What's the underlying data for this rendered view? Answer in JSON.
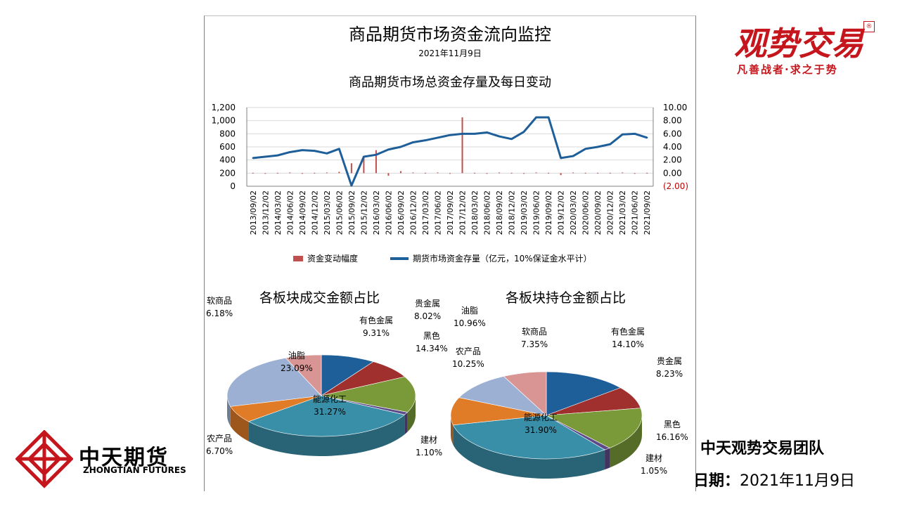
{
  "header": {
    "title": "商品期货市场资金流向监控",
    "date": "2021年11月9日",
    "chart_title": "商品期货市场总资金存量及每日变动"
  },
  "brand": {
    "logo_text": "观势交易",
    "slogan": "凡善战者·求之于势",
    "company_cn": "中天期货",
    "company_en": "ZHONGTIAN FUTURES",
    "team": "中天观势交易团队",
    "footer_date_label": "日期：",
    "footer_date": "2021年11月9日",
    "colors": {
      "brand_red": "#c4161c"
    }
  },
  "chart_data": [
    {
      "type": "line",
      "title": "商品期货市场总资金存量及每日变动",
      "x": [
        "2013/09/02",
        "2013/12/02",
        "2014/03/02",
        "2014/06/02",
        "2014/09/02",
        "2014/12/02",
        "2015/03/02",
        "2015/06/02",
        "2015/09/02",
        "2015/12/02",
        "2016/03/02",
        "2016/06/02",
        "2016/09/02",
        "2016/12/02",
        "2017/03/02",
        "2017/06/02",
        "2017/09/02",
        "2017/12/02",
        "2018/03/02",
        "2018/06/02",
        "2018/09/02",
        "2018/12/02",
        "2019/03/02",
        "2019/06/02",
        "2019/09/02",
        "2019/12/02",
        "2020/03/02",
        "2020/06/02",
        "2020/09/02",
        "2020/12/02",
        "2021/03/02",
        "2021/06/02",
        "2021/09/02"
      ],
      "left_axis": {
        "ylim": [
          0,
          1200
        ],
        "ticks": [
          "0",
          "200",
          "400",
          "600",
          "800",
          "1,000",
          "1,200"
        ]
      },
      "right_axis": {
        "ylim": [
          -2,
          10
        ],
        "ticks": [
          "(2.00)",
          "0.00",
          "2.00",
          "4.00",
          "6.00",
          "8.00",
          "10.00"
        ]
      },
      "series": [
        {
          "name": "期货市场资金存量（亿元，10%保证金水平计）",
          "axis": "left",
          "color": "#1f5f99",
          "values": [
            430,
            450,
            470,
            520,
            550,
            540,
            500,
            570,
            10,
            450,
            480,
            560,
            600,
            670,
            700,
            740,
            780,
            800,
            800,
            820,
            760,
            720,
            830,
            1050,
            1050,
            430,
            460,
            570,
            600,
            640,
            790,
            800,
            740
          ]
        },
        {
          "name": "资金变动幅度",
          "axis": "right",
          "color": "#c0504d",
          "values": [
            0.05,
            -0.05,
            0.05,
            0.1,
            -0.05,
            0.05,
            0.1,
            0.2,
            1.5,
            2.5,
            3.5,
            -0.4,
            0.3,
            0.1,
            0.05,
            0.1,
            -0.1,
            8.5,
            0.05,
            -0.05,
            0.1,
            0.05,
            -0.05,
            0.1,
            0.05,
            -0.3,
            0.1,
            0.05,
            0.05,
            0.05,
            0.1,
            -0.05,
            0.05
          ]
        }
      ]
    },
    {
      "type": "pie",
      "title": "各板块成交金额占比",
      "labels": [
        "有色金属",
        "贵金属",
        "黑色",
        "建材",
        "能源化工",
        "农产品",
        "油脂",
        "软商品"
      ],
      "values": [
        9.31,
        8.02,
        14.34,
        1.1,
        31.27,
        6.7,
        23.09,
        6.18
      ],
      "value_labels": [
        "9.31%",
        "8.02%",
        "14.34%",
        "1.10%",
        "31.27%",
        "6.70%",
        "23.09%",
        "6.18%"
      ],
      "colors": [
        "#1f5f99",
        "#a0302e",
        "#7a9a3a",
        "#5d4a8a",
        "#3a8fa8",
        "#e07b27",
        "#9bb0d3",
        "#d99594"
      ]
    },
    {
      "type": "pie",
      "title": "各板块持仓金额占比",
      "labels": [
        "有色金属",
        "贵金属",
        "黑色",
        "建材",
        "能源化工",
        "农产品",
        "油脂",
        "软商品"
      ],
      "values": [
        14.1,
        8.23,
        16.16,
        1.05,
        31.9,
        10.25,
        10.96,
        7.35
      ],
      "value_labels": [
        "14.10%",
        "8.23%",
        "16.16%",
        "1.05%",
        "31.90%",
        "10.25%",
        "10.96%",
        "7.35%"
      ],
      "colors": [
        "#1f5f99",
        "#a0302e",
        "#7a9a3a",
        "#5d4a8a",
        "#3a8fa8",
        "#e07b27",
        "#9bb0d3",
        "#d99594"
      ]
    }
  ]
}
